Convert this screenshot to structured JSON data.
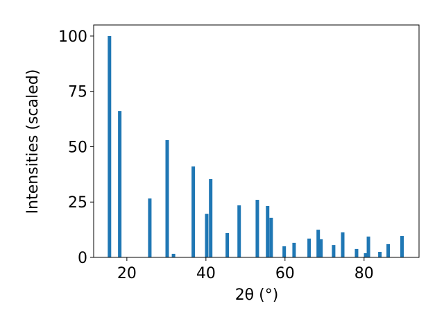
{
  "chart_data": {
    "type": "bar",
    "xlabel": "2θ (°)",
    "ylabel": "Intensities (scaled)",
    "x": [
      15.6,
      18.2,
      25.8,
      30.2,
      31.8,
      36.8,
      40.2,
      41.2,
      45.4,
      48.4,
      53.0,
      55.6,
      56.5,
      59.8,
      62.3,
      66.1,
      68.4,
      69.1,
      72.3,
      74.6,
      78.1,
      80.4,
      81.1,
      84.0,
      86.1,
      89.6
    ],
    "values": [
      100,
      66.1,
      26.6,
      53,
      1.6,
      41.1,
      19.7,
      35.4,
      11,
      23.5,
      26,
      23.2,
      17.9,
      5,
      6.6,
      8.5,
      12.5,
      8.2,
      5.6,
      11.3,
      3.8,
      1.9,
      9.4,
      2.5,
      6,
      9.7
    ],
    "color": "#1f77b4",
    "xlim": [
      11.6,
      93.9
    ],
    "xticks": [
      20,
      40,
      60,
      80
    ],
    "ylim": [
      0,
      105
    ],
    "yticks": [
      0,
      25,
      50,
      75,
      100
    ]
  }
}
